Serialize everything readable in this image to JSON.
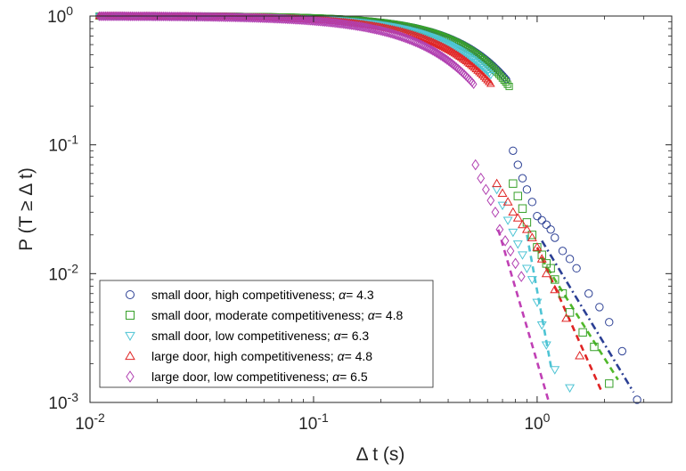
{
  "chart_data": {
    "type": "scatter",
    "xscale": "log",
    "yscale": "log",
    "xlim": [
      0.01,
      4
    ],
    "ylim": [
      0.001,
      1
    ],
    "xlabel": "Δ t (s)",
    "ylabel": "P (T ≥ Δ t)",
    "xticks": [
      {
        "value": 0.01,
        "base": "10",
        "exp": "-2"
      },
      {
        "value": 0.1,
        "base": "10",
        "exp": "-1"
      },
      {
        "value": 1,
        "base": "10",
        "exp": "0"
      }
    ],
    "yticks": [
      {
        "value": 0.001,
        "base": "10",
        "exp": "-3"
      },
      {
        "value": 0.01,
        "base": "10",
        "exp": "-2"
      },
      {
        "value": 0.1,
        "base": "10",
        "exp": "-1"
      },
      {
        "value": 1,
        "base": "10",
        "exp": "0"
      }
    ],
    "grid": false,
    "legend_position": "bottom-left",
    "series": [
      {
        "name": "small door, high competitiveness; ",
        "alpha": "4.3",
        "marker": "circle",
        "color": "#2b3f94",
        "fit_color": "#2b3f94",
        "fit_style": "dash-dot",
        "cloud_to": 0.73,
        "x": [
          0.78,
          0.82,
          0.86,
          0.9,
          0.95,
          1.0,
          1.05,
          1.1,
          1.15,
          1.2,
          1.3,
          1.4,
          1.5,
          1.7,
          1.9,
          2.1,
          2.4,
          2.8
        ],
        "y": [
          0.09,
          0.07,
          0.055,
          0.045,
          0.036,
          0.028,
          0.026,
          0.024,
          0.022,
          0.019,
          0.015,
          0.013,
          0.011,
          0.007,
          0.0055,
          0.0042,
          0.0025,
          0.00105
        ],
        "fit_x": [
          1.05,
          2.7
        ],
        "fit_y": [
          0.018,
          0.0012
        ]
      },
      {
        "name": "small door, moderate competitiveness; ",
        "alpha": "4.8",
        "marker": "square",
        "color": "#37a02a",
        "fit_color": "#50b82a",
        "fit_style": "dash",
        "cloud_to": 0.75,
        "x": [
          0.78,
          0.82,
          0.86,
          0.9,
          0.95,
          1.0,
          1.05,
          1.1,
          1.15,
          1.2,
          1.3,
          1.4,
          1.6,
          1.8,
          2.1
        ],
        "y": [
          0.05,
          0.04,
          0.032,
          0.025,
          0.02,
          0.016,
          0.014,
          0.012,
          0.011,
          0.009,
          0.007,
          0.005,
          0.0035,
          0.0027,
          0.0014
        ],
        "fit_x": [
          1.05,
          2.3
        ],
        "fit_y": [
          0.013,
          0.0015
        ]
      },
      {
        "name": "small door, low competitiveness; ",
        "alpha": "6.3",
        "marker": "triangle-down",
        "color": "#4ec4d4",
        "fit_color": "#4ec4d4",
        "fit_style": "dash",
        "cloud_to": 0.62,
        "x": [
          0.66,
          0.7,
          0.74,
          0.78,
          0.82,
          0.86,
          0.9,
          0.95,
          1.0,
          1.05,
          1.1,
          1.2,
          1.4
        ],
        "y": [
          0.045,
          0.034,
          0.026,
          0.021,
          0.017,
          0.014,
          0.011,
          0.009,
          0.006,
          0.004,
          0.0028,
          0.0018,
          0.0013
        ],
        "fit_x": [
          0.9,
          1.16
        ],
        "fit_y": [
          0.02,
          0.0018
        ]
      },
      {
        "name": "large door, high competitiveness; ",
        "alpha": "4.8",
        "marker": "triangle-up",
        "color": "#e02424",
        "fit_color": "#e02424",
        "fit_style": "dash",
        "cloud_to": 0.62,
        "x": [
          0.66,
          0.7,
          0.74,
          0.78,
          0.82,
          0.86,
          0.9,
          0.95,
          1.0,
          1.05,
          1.1,
          1.2,
          1.35,
          1.55
        ],
        "y": [
          0.05,
          0.042,
          0.036,
          0.03,
          0.027,
          0.024,
          0.022,
          0.019,
          0.016,
          0.013,
          0.01,
          0.0075,
          0.0045,
          0.0023
        ],
        "fit_x": [
          1.0,
          1.95
        ],
        "fit_y": [
          0.016,
          0.0012
        ]
      },
      {
        "name": "large door, low competitiveness; ",
        "alpha": "6.5",
        "marker": "diamond",
        "color": "#b140b1",
        "fit_color": "#c040b5",
        "fit_style": "dash",
        "cloud_to": 0.52,
        "x": [
          0.53,
          0.56,
          0.59,
          0.62,
          0.65,
          0.68,
          0.72,
          0.76,
          0.8,
          0.85
        ],
        "y": [
          0.07,
          0.055,
          0.045,
          0.037,
          0.03,
          0.022,
          0.018,
          0.015,
          0.012,
          0.0095
        ],
        "fit_x": [
          0.67,
          1.13
        ],
        "fit_y": [
          0.022,
          0.001
        ]
      }
    ]
  }
}
